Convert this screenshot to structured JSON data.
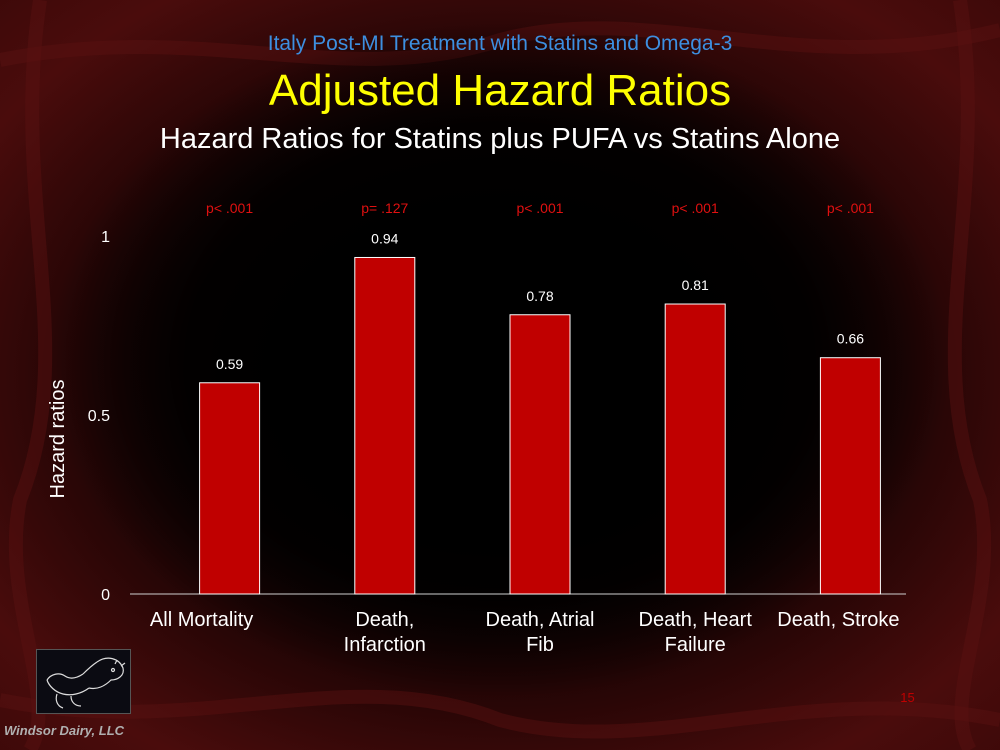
{
  "header": {
    "supertitle": "Italy Post-MI Treatment with Statins and Omega-3",
    "title": "Adjusted Hazard Ratios",
    "subtitle": "Hazard Ratios for Statins plus PUFA vs Statins Alone"
  },
  "footer": {
    "company": "Windsor Dairy, LLC",
    "page_number": "15"
  },
  "colors": {
    "bar": "#c00000",
    "pvalue": "#e01010",
    "supertitle": "#3d8fe0",
    "title": "#ffff00",
    "text": "#ffffff"
  },
  "chart_data": {
    "type": "bar",
    "ylabel": "Hazard ratios",
    "xlabel": "",
    "ylim": [
      0,
      1
    ],
    "yticks": [
      "0",
      "0.5",
      "1"
    ],
    "yticks_values": [
      0,
      0.5,
      1
    ],
    "grid": false,
    "categories": [
      [
        "All Mortality"
      ],
      [
        "Death,",
        "Infarction"
      ],
      [
        "Death, Atrial",
        "Fib"
      ],
      [
        "Death, Heart",
        "Failure"
      ],
      [
        "Death, Stroke"
      ]
    ],
    "values": [
      0.59,
      0.94,
      0.78,
      0.81,
      0.66
    ],
    "data_labels": [
      "0.59",
      "0.94",
      "0.78",
      "0.81",
      "0.66"
    ],
    "p_values": [
      "p< .001",
      "p= .127",
      "p< .001",
      "p< .001",
      "p< .001"
    ]
  }
}
